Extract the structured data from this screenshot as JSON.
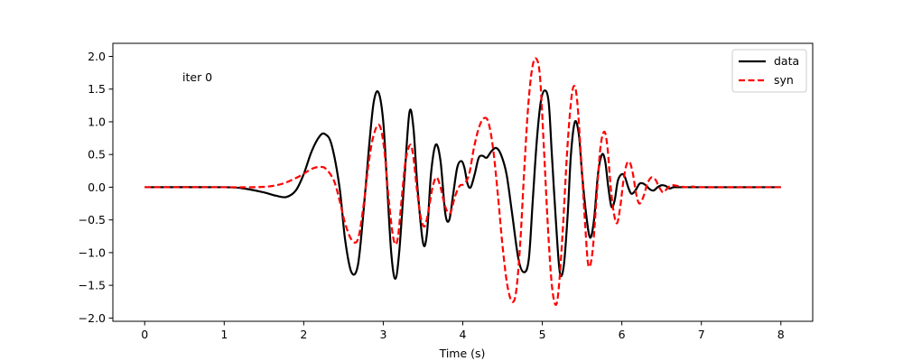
{
  "chart_data": {
    "type": "line",
    "title": "",
    "xlabel": "Time (s)",
    "ylabel": "",
    "xlim": [
      -0.4,
      8.4
    ],
    "ylim": [
      -2.05,
      2.2
    ],
    "xticks": [
      0,
      1,
      2,
      3,
      4,
      5,
      6,
      7,
      8
    ],
    "xtick_labels": [
      "0",
      "1",
      "2",
      "3",
      "4",
      "5",
      "6",
      "7",
      "8"
    ],
    "yticks": [
      -2.0,
      -1.5,
      -1.0,
      -0.5,
      0.0,
      0.5,
      1.0,
      1.5,
      2.0
    ],
    "ytick_labels": [
      "−2.0",
      "−1.5",
      "−1.0",
      "−0.5",
      "0.0",
      "0.5",
      "1.0",
      "1.5",
      "2.0"
    ],
    "grid": false,
    "legend_position": "top-right",
    "annotation": "iter 0",
    "series": [
      {
        "name": "data",
        "color": "#000000",
        "style": "solid",
        "x": [
          0,
          1.0,
          1.25,
          1.5,
          1.65,
          1.78,
          1.9,
          2.0,
          2.1,
          2.2,
          2.27,
          2.35,
          2.45,
          2.52,
          2.6,
          2.68,
          2.75,
          2.82,
          2.88,
          2.94,
          3.0,
          3.05,
          3.1,
          3.15,
          3.2,
          3.27,
          3.33,
          3.38,
          3.43,
          3.5,
          3.55,
          3.6,
          3.66,
          3.72,
          3.78,
          3.83,
          3.88,
          3.93,
          3.98,
          4.02,
          4.06,
          4.1,
          4.15,
          4.2,
          4.25,
          4.3,
          4.36,
          4.42,
          4.48,
          4.55,
          4.62,
          4.7,
          4.77,
          4.83,
          4.88,
          4.93,
          4.98,
          5.03,
          5.08,
          5.12,
          5.17,
          5.22,
          5.27,
          5.32,
          5.36,
          5.41,
          5.46,
          5.5,
          5.55,
          5.6,
          5.65,
          5.7,
          5.75,
          5.79,
          5.83,
          5.87,
          5.91,
          5.95,
          6.0,
          6.04,
          6.08,
          6.12,
          6.17,
          6.22,
          6.26,
          6.3,
          6.35,
          6.4,
          6.45,
          6.5,
          6.55,
          6.6,
          6.65,
          6.7,
          6.8,
          6.9,
          7.0,
          8.0
        ],
        "y": [
          0,
          0,
          -0.02,
          -0.08,
          -0.13,
          -0.15,
          -0.05,
          0.2,
          0.55,
          0.78,
          0.81,
          0.65,
          0.0,
          -0.8,
          -1.3,
          -1.2,
          -0.4,
          0.6,
          1.3,
          1.45,
          1.0,
          0.0,
          -1.0,
          -1.4,
          -1.0,
          0.2,
          1.15,
          0.9,
          0.0,
          -0.85,
          -0.7,
          0.2,
          0.65,
          0.4,
          -0.4,
          -0.5,
          -0.1,
          0.3,
          0.4,
          0.3,
          0.05,
          0.0,
          0.2,
          0.45,
          0.48,
          0.45,
          0.55,
          0.6,
          0.5,
          0.2,
          -0.4,
          -1.1,
          -1.3,
          -1.1,
          -0.2,
          0.7,
          1.3,
          1.48,
          1.3,
          0.5,
          -0.5,
          -1.3,
          -1.2,
          -0.4,
          0.5,
          1.0,
          0.8,
          0.2,
          -0.4,
          -0.77,
          -0.5,
          0.2,
          0.5,
          0.4,
          0.0,
          -0.3,
          -0.2,
          0.1,
          0.2,
          0.15,
          0.0,
          -0.1,
          -0.05,
          0.05,
          0.06,
          0.03,
          -0.03,
          -0.05,
          0.0,
          0.03,
          0.02,
          -0.02,
          0.0,
          0.0,
          0.0,
          0.0,
          0.0,
          0.0
        ]
      },
      {
        "name": "syn",
        "color": "#ff0000",
        "style": "dashed",
        "x": [
          0,
          1.0,
          1.3,
          1.55,
          1.75,
          1.95,
          2.1,
          2.2,
          2.28,
          2.38,
          2.45,
          2.52,
          2.6,
          2.68,
          2.75,
          2.82,
          2.88,
          2.95,
          3.01,
          3.07,
          3.13,
          3.18,
          3.23,
          3.28,
          3.34,
          3.38,
          3.42,
          3.47,
          3.52,
          3.57,
          3.62,
          3.67,
          3.72,
          3.78,
          3.84,
          3.9,
          3.96,
          4.02,
          4.08,
          4.14,
          4.2,
          4.26,
          4.32,
          4.38,
          4.44,
          4.5,
          4.56,
          4.62,
          4.67,
          4.72,
          4.77,
          4.82,
          4.87,
          4.92,
          4.97,
          5.02,
          5.07,
          5.12,
          5.17,
          5.21,
          5.26,
          5.31,
          5.36,
          5.4,
          5.44,
          5.49,
          5.54,
          5.58,
          5.63,
          5.68,
          5.73,
          5.78,
          5.82,
          5.86,
          5.9,
          5.94,
          5.98,
          6.02,
          6.06,
          6.1,
          6.14,
          6.18,
          6.22,
          6.27,
          6.32,
          6.37,
          6.42,
          6.47,
          6.52,
          6.57,
          6.62,
          6.7,
          6.8,
          6.9,
          7.0,
          8.0
        ],
        "y": [
          0,
          0,
          0.0,
          0.01,
          0.06,
          0.17,
          0.28,
          0.31,
          0.28,
          0.1,
          -0.2,
          -0.55,
          -0.8,
          -0.8,
          -0.3,
          0.4,
          0.8,
          0.95,
          0.6,
          -0.2,
          -0.8,
          -0.8,
          -0.2,
          0.4,
          0.65,
          0.45,
          0.0,
          -0.45,
          -0.6,
          -0.35,
          0.0,
          0.15,
          0.0,
          -0.3,
          -0.4,
          -0.15,
          0.02,
          0.05,
          0.2,
          0.6,
          0.9,
          1.05,
          1.0,
          0.6,
          -0.1,
          -0.9,
          -1.5,
          -1.75,
          -1.6,
          -0.9,
          0.2,
          1.2,
          1.8,
          1.97,
          1.7,
          0.6,
          -0.6,
          -1.5,
          -1.8,
          -1.5,
          -0.6,
          0.5,
          1.3,
          1.55,
          1.3,
          0.4,
          -0.6,
          -1.2,
          -1.0,
          -0.2,
          0.6,
          0.85,
          0.6,
          0.0,
          -0.4,
          -0.55,
          -0.3,
          0.1,
          0.35,
          0.38,
          0.2,
          -0.1,
          -0.25,
          -0.15,
          0.05,
          0.15,
          0.12,
          0.0,
          -0.08,
          -0.02,
          0.03,
          0.02,
          0.0,
          0.01,
          0.0,
          0.0
        ]
      }
    ]
  }
}
